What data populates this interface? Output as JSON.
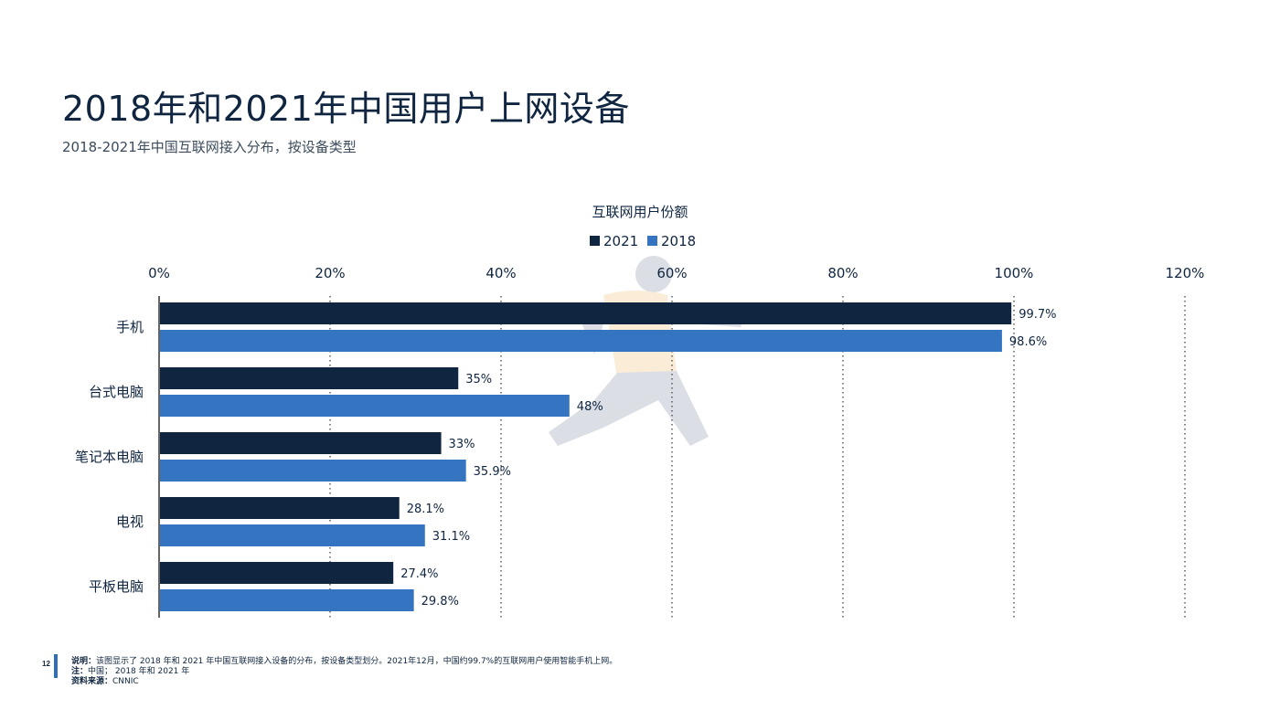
{
  "page": {
    "title": "2018年和2021年中国用户上网设备",
    "subtitle": "2018-2021年中国互联网接入分布，按设备类型",
    "page_number": "12",
    "footer": {
      "note_label": "说明：",
      "note_text": "该图显示了 2018 年和 2021 年中国互联网接入设备的分布，按设备类型划分。2021年12月，中国约99.7%的互联网用户使用智能手机上网。",
      "remark_label": "注：",
      "remark_text": "中国； 2018 年和 2021 年",
      "source_label": "资料来源：",
      "source_text": "CNNIC"
    }
  },
  "chart_data": {
    "type": "bar",
    "orientation": "horizontal",
    "title": "互联网用户份额",
    "categories": [
      "手机",
      "台式电脑",
      "笔记本电脑",
      "电视",
      "平板电脑"
    ],
    "series": [
      {
        "name": "2021",
        "color": "#0f2540",
        "values": [
          99.7,
          35,
          33,
          28.1,
          27.4
        ],
        "labels": [
          "99.7%",
          "35%",
          "33%",
          "28.1%",
          "27.4%"
        ]
      },
      {
        "name": "2018",
        "color": "#3474c0",
        "values": [
          98.6,
          48,
          35.9,
          31.1,
          29.8
        ],
        "labels": [
          "98.6%",
          "48%",
          "35.9%",
          "31.1%",
          "29.8%"
        ]
      }
    ],
    "xlim": [
      0,
      120
    ],
    "ticks": [
      0,
      20,
      40,
      60,
      80,
      100,
      120
    ],
    "tick_labels": [
      "0%",
      "20%",
      "40%",
      "60%",
      "80%",
      "100%",
      "120%"
    ],
    "grid": true,
    "legend_position": "top-center",
    "axis_position": "top"
  }
}
